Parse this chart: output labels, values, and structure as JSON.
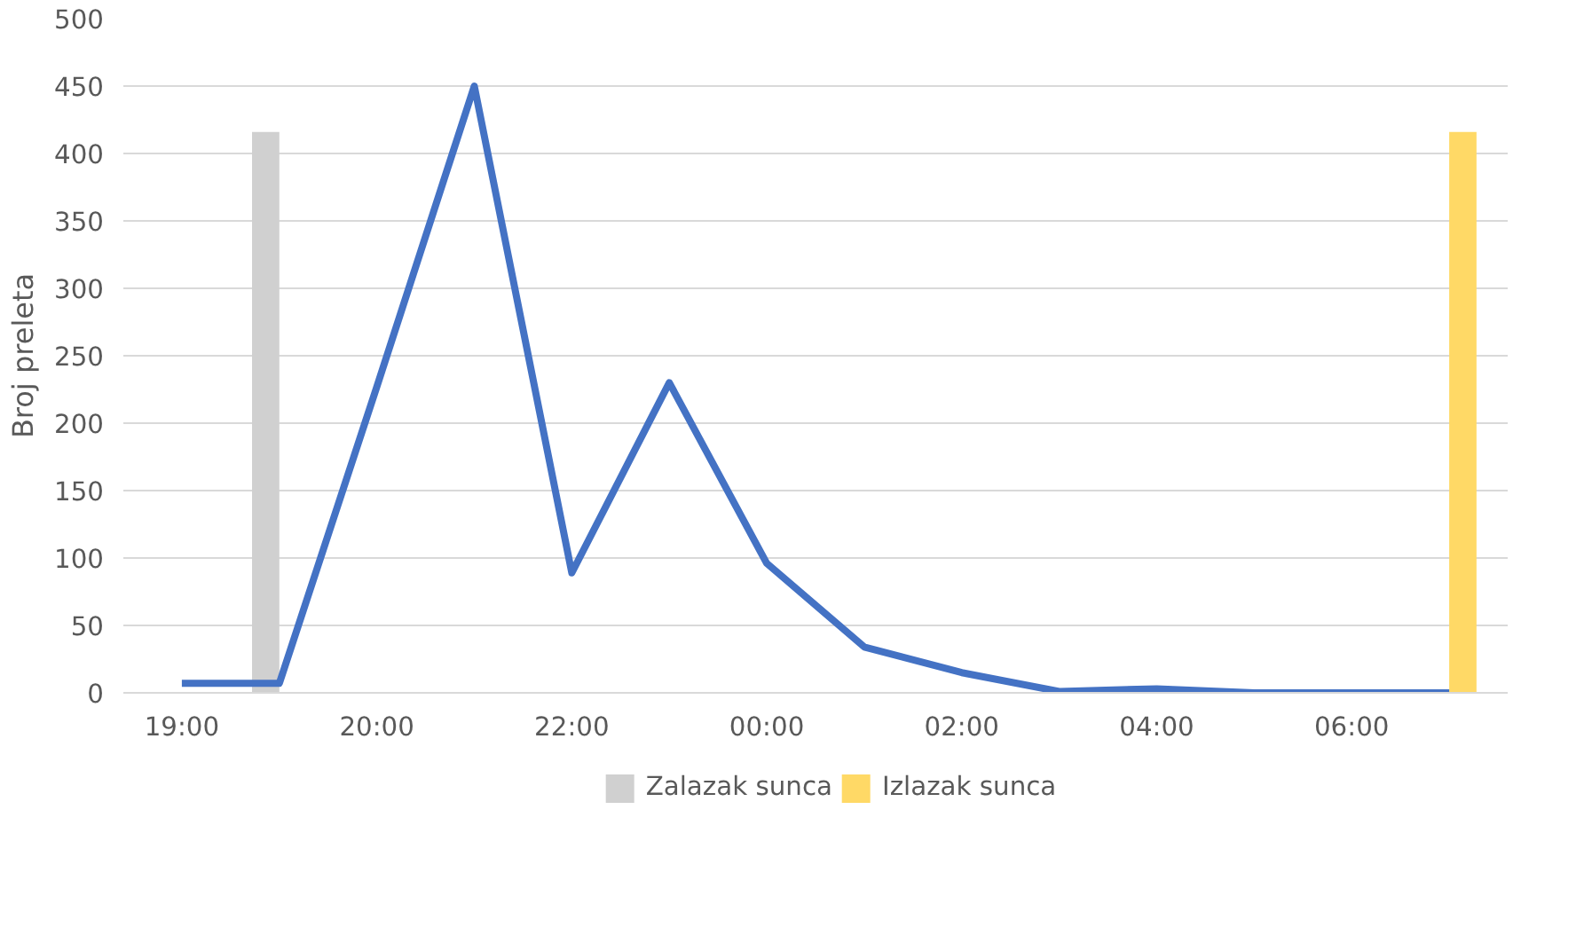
{
  "chart_data": {
    "type": "line",
    "ylabel": "Broj preleta",
    "categories": [
      "19:00",
      null,
      "20:00",
      null,
      "22:00",
      null,
      "00:00",
      null,
      "02:00",
      null,
      "04:00",
      null,
      "06:00",
      null
    ],
    "series": [
      {
        "name": "Zalazak sunca",
        "type": "bar",
        "color": "#d0d0d0",
        "values": [
          null,
          416,
          null,
          null,
          null,
          null,
          null,
          null,
          null,
          null,
          null,
          null,
          null,
          null
        ]
      },
      {
        "name": "Izlazak sunca",
        "type": "bar",
        "color": "#ffd966",
        "values": [
          null,
          null,
          null,
          null,
          null,
          null,
          null,
          null,
          null,
          null,
          null,
          null,
          null,
          416
        ]
      },
      {
        "color": "#4472c4",
        "values": [
          7,
          7,
          227,
          450,
          89,
          230,
          96,
          34,
          15,
          1,
          3,
          0,
          0,
          0
        ]
      }
    ],
    "ylim": [
      0,
      500
    ],
    "yticks": [
      0,
      50,
      100,
      150,
      200,
      250,
      300,
      350,
      400,
      450,
      500
    ],
    "grid": "y",
    "legend": "bottom",
    "line_style": "solid",
    "marker": "none"
  }
}
